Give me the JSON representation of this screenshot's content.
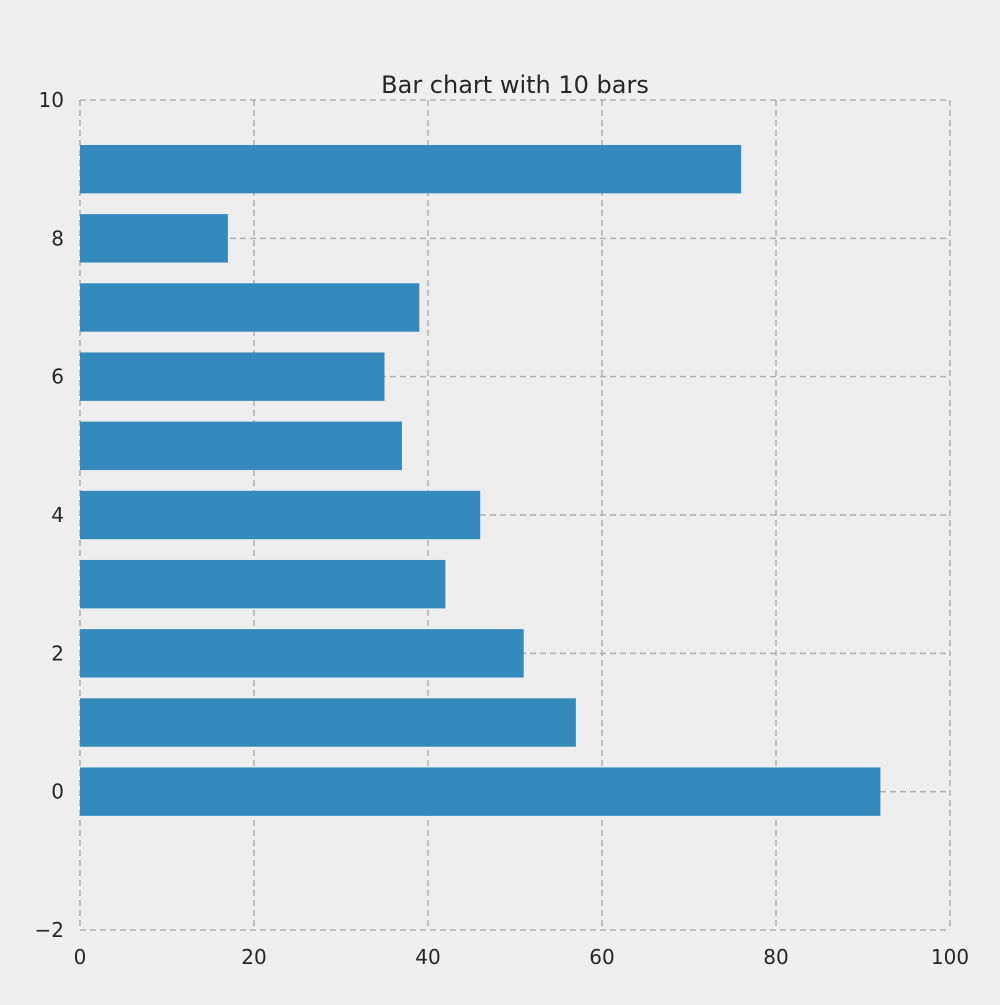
{
  "chart_data": {
    "type": "bar",
    "orientation": "horizontal",
    "title": "Bar chart with 10 bars",
    "xlabel": "",
    "ylabel": "",
    "categories": [
      0,
      1,
      2,
      3,
      4,
      5,
      6,
      7,
      8,
      9
    ],
    "values": [
      92,
      57,
      51,
      42,
      46,
      37,
      35,
      39,
      17,
      76
    ],
    "xlim": [
      0,
      100
    ],
    "ylim": [
      -2,
      10
    ],
    "x_ticks": [
      "0",
      "20",
      "40",
      "60",
      "80",
      "100"
    ],
    "y_ticks": [
      "−2",
      "0",
      "2",
      "4",
      "6",
      "8",
      "10"
    ],
    "grid": true,
    "bar_color": "#348abd",
    "background_color": "#efefef",
    "plot_background_color": "#eeeeee",
    "grid_color": "#b0b0b0"
  }
}
